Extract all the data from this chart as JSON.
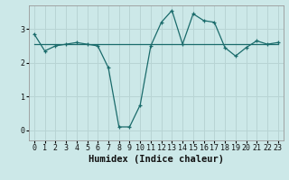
{
  "title": "",
  "xlabel": "Humidex (Indice chaleur)",
  "ylabel": "",
  "background_color": "#cce8e8",
  "line_color": "#1a6b6b",
  "grid_color": "#b8d4d4",
  "xlim": [
    -0.5,
    23.5
  ],
  "ylim": [
    -0.3,
    3.7
  ],
  "yticks": [
    0,
    1,
    2,
    3
  ],
  "xticks": [
    0,
    1,
    2,
    3,
    4,
    5,
    6,
    7,
    8,
    9,
    10,
    11,
    12,
    13,
    14,
    15,
    16,
    17,
    18,
    19,
    20,
    21,
    22,
    23
  ],
  "series1_x": [
    0,
    1,
    2,
    3,
    4,
    5,
    6,
    7,
    8,
    9,
    10,
    11,
    12,
    13,
    14,
    15,
    16,
    17,
    18,
    19,
    20,
    21,
    22,
    23
  ],
  "series1_y": [
    2.85,
    2.35,
    2.5,
    2.55,
    2.6,
    2.55,
    2.5,
    1.85,
    0.1,
    0.1,
    0.75,
    2.5,
    3.2,
    3.55,
    2.55,
    3.45,
    3.25,
    3.2,
    2.45,
    2.2,
    2.45,
    2.65,
    2.55,
    2.6
  ],
  "series2_x": [
    0,
    23
  ],
  "series2_y": [
    2.55,
    2.55
  ],
  "font_family": "monospace",
  "tick_fontsize": 6,
  "label_fontsize": 7.5
}
